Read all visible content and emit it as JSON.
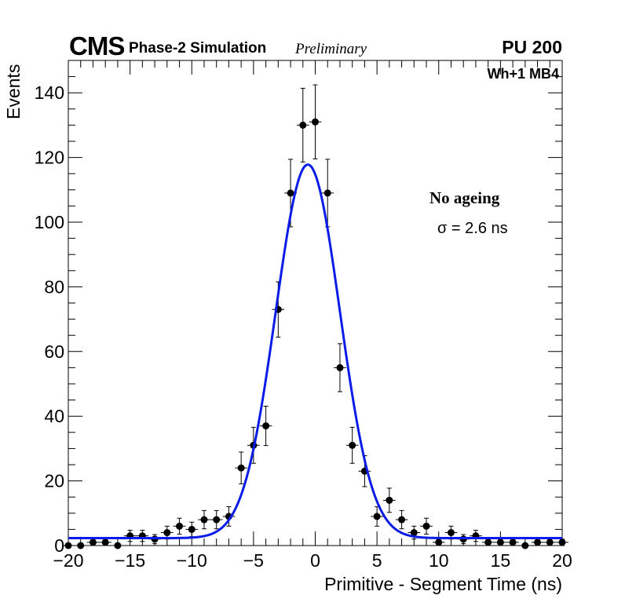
{
  "header": {
    "experiment": "CMS",
    "simulation": "Phase-2 Simulation",
    "status": "Preliminary",
    "pileup": "PU 200",
    "chamber": "Wh+1 MB4"
  },
  "annotation": {
    "condition": "No ageing",
    "resolution": "σ = 2.6 ns"
  },
  "colors": {
    "fit": "#0a1ce6",
    "points": "#000000",
    "axes": "#000000"
  },
  "chart_data": {
    "type": "scatter",
    "title": "",
    "xlabel": "Primitive - Segment Time (ns)",
    "ylabel": "Events",
    "xlim": [
      -20,
      20
    ],
    "ylim": [
      0,
      150
    ],
    "xticks": [
      -20,
      -15,
      -10,
      -5,
      0,
      5,
      10,
      15,
      20
    ],
    "xtick_labels": [
      "−20",
      "−15",
      "−10",
      "−5",
      "0",
      "5",
      "10",
      "15",
      "20"
    ],
    "yticks": [
      0,
      20,
      40,
      60,
      80,
      100,
      120,
      140
    ],
    "ytick_labels": [
      "0",
      "20",
      "40",
      "60",
      "80",
      "100",
      "120",
      "140"
    ],
    "bin_width": 1,
    "series": [
      {
        "name": "Data",
        "x": [
          -20,
          -19,
          -18,
          -17,
          -16,
          -15,
          -14,
          -13,
          -12,
          -11,
          -10,
          -9,
          -8,
          -7,
          -6,
          -5,
          -4,
          -3,
          -2,
          -1,
          0,
          1,
          2,
          3,
          4,
          5,
          6,
          7,
          8,
          9,
          10,
          11,
          12,
          13,
          14,
          15,
          16,
          17,
          18,
          19,
          20
        ],
        "y": [
          0,
          0,
          1,
          1,
          0,
          3,
          3,
          2,
          4,
          6,
          5,
          8,
          8,
          9,
          24,
          31,
          37,
          73,
          109,
          130,
          131,
          109,
          55,
          31,
          23,
          9,
          14,
          8,
          4,
          6,
          1,
          4,
          2,
          3,
          1,
          1,
          1,
          0,
          1,
          1,
          1
        ]
      },
      {
        "name": "Gaussian fit",
        "type": "line",
        "amplitude": 115.5,
        "mean": -0.6,
        "sigma": 2.6,
        "constant": 2.3
      }
    ]
  }
}
